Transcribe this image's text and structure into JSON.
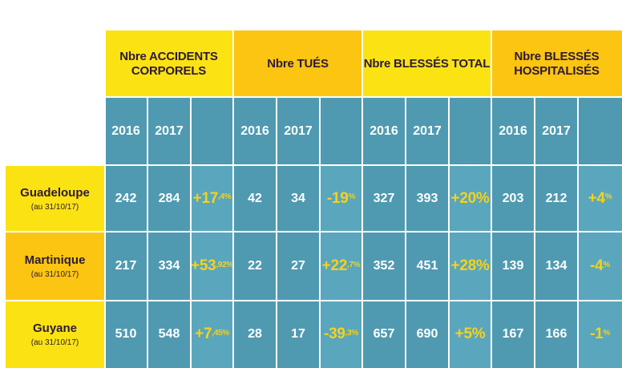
{
  "groups": [
    {
      "label": "Nbre ACCIDENTS CORPORELS"
    },
    {
      "label": "Nbre TUÉS"
    },
    {
      "label": "Nbre BLESSÉS TOTAL"
    },
    {
      "label": "Nbre BLESSÉS HOSPITALISÉS"
    }
  ],
  "years": [
    "2016",
    "2017"
  ],
  "rows": [
    {
      "name": "Guadeloupe",
      "date": "(au 31/10/17)",
      "groups": [
        {
          "v2016": "242",
          "v2017": "284",
          "pct_main": "+17",
          "pct_sup": ",4%"
        },
        {
          "v2016": "42",
          "v2017": "34",
          "pct_main": "-19",
          "pct_sup": "%"
        },
        {
          "v2016": "327",
          "v2017": "393",
          "pct_main": "+20%",
          "pct_sup": ""
        },
        {
          "v2016": "203",
          "v2017": "212",
          "pct_main": "+4",
          "pct_sup": "%"
        }
      ]
    },
    {
      "name": "Martinique",
      "date": "(au 31/10/17)",
      "groups": [
        {
          "v2016": "217",
          "v2017": "334",
          "pct_main": "+53",
          "pct_sup": ",92%"
        },
        {
          "v2016": "22",
          "v2017": "27",
          "pct_main": "+22",
          "pct_sup": ",7%"
        },
        {
          "v2016": "352",
          "v2017": "451",
          "pct_main": "+28%",
          "pct_sup": ""
        },
        {
          "v2016": "139",
          "v2017": "134",
          "pct_main": "-4",
          "pct_sup": "%"
        }
      ]
    },
    {
      "name": "Guyane",
      "date": "(au 31/10/17)",
      "groups": [
        {
          "v2016": "510",
          "v2017": "548",
          "pct_main": "+7",
          "pct_sup": ",45%"
        },
        {
          "v2016": "28",
          "v2017": "17",
          "pct_main": "-39",
          "pct_sup": ",3%"
        },
        {
          "v2016": "657",
          "v2017": "690",
          "pct_main": "+5%",
          "pct_sup": ""
        },
        {
          "v2016": "167",
          "v2017": "166",
          "pct_main": "-1",
          "pct_sup": "%"
        }
      ]
    }
  ],
  "colors": {
    "header_yellow": "#fbe313",
    "header_gold": "#fcc511",
    "teal_dark": "#4f9ab1",
    "teal_light": "#5aa6bd",
    "percent_yellow": "#f7d21a",
    "header_text": "#2d1a3a"
  }
}
